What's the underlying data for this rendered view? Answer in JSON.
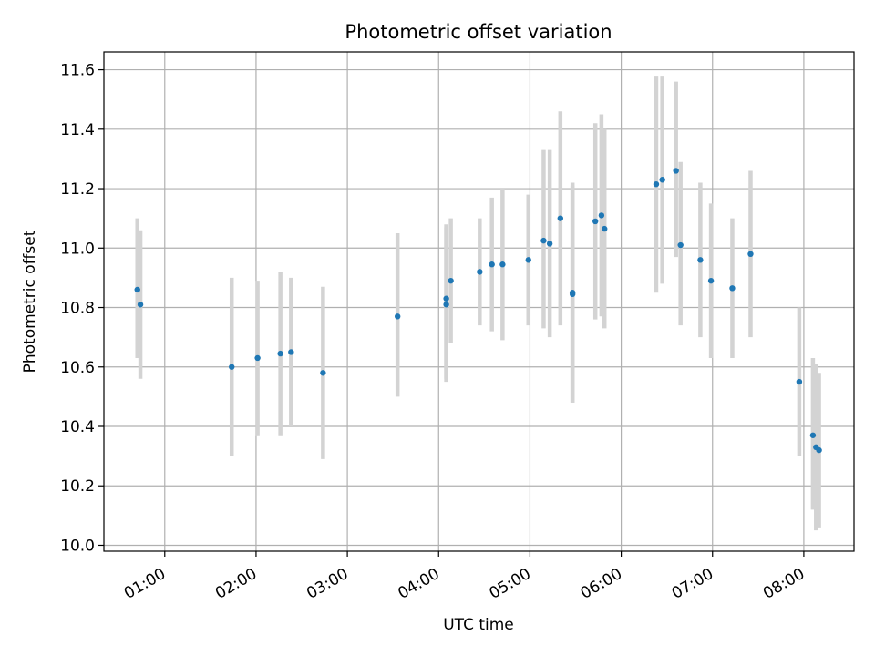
{
  "chart_data": {
    "type": "scatter",
    "title": "Photometric offset variation",
    "xlabel": "UTC time",
    "ylabel": "Photometric offset",
    "x_tick_labels": [
      "01:00",
      "02:00",
      "03:00",
      "04:00",
      "05:00",
      "06:00",
      "07:00",
      "08:00"
    ],
    "y_tick_labels": [
      "10.0",
      "10.2",
      "10.4",
      "10.6",
      "10.8",
      "11.0",
      "11.2",
      "11.4",
      "11.6"
    ],
    "xlim": [
      "00:20",
      "08:33"
    ],
    "ylim": [
      9.98,
      11.66
    ],
    "grid": true,
    "colors": {
      "point": "#1f77b4",
      "errorbar": "#d3d3d3",
      "grid": "#b0b0b0"
    },
    "points": [
      {
        "t": "00:42",
        "y": 10.86,
        "ylo": 10.63,
        "yhi": 11.1
      },
      {
        "t": "00:44",
        "y": 10.81,
        "ylo": 10.56,
        "yhi": 11.06
      },
      {
        "t": "01:44",
        "y": 10.6,
        "ylo": 10.3,
        "yhi": 10.9
      },
      {
        "t": "02:01",
        "y": 10.63,
        "ylo": 10.37,
        "yhi": 10.89
      },
      {
        "t": "02:16",
        "y": 10.645,
        "ylo": 10.37,
        "yhi": 10.92
      },
      {
        "t": "02:23",
        "y": 10.65,
        "ylo": 10.4,
        "yhi": 10.9
      },
      {
        "t": "02:44",
        "y": 10.58,
        "ylo": 10.29,
        "yhi": 10.87
      },
      {
        "t": "03:33",
        "y": 10.77,
        "ylo": 10.5,
        "yhi": 11.05
      },
      {
        "t": "04:05",
        "y": 10.83,
        "ylo": 10.56,
        "yhi": 11.08
      },
      {
        "t": "04:05",
        "y": 10.81,
        "ylo": 10.55,
        "yhi": 11.07
      },
      {
        "t": "04:08",
        "y": 10.89,
        "ylo": 10.68,
        "yhi": 11.1
      },
      {
        "t": "04:27",
        "y": 10.92,
        "ylo": 10.74,
        "yhi": 11.1
      },
      {
        "t": "04:35",
        "y": 10.945,
        "ylo": 10.72,
        "yhi": 11.17
      },
      {
        "t": "04:42",
        "y": 10.945,
        "ylo": 10.69,
        "yhi": 11.2
      },
      {
        "t": "04:59",
        "y": 10.96,
        "ylo": 10.74,
        "yhi": 11.18
      },
      {
        "t": "05:09",
        "y": 11.025,
        "ylo": 10.73,
        "yhi": 11.33
      },
      {
        "t": "05:13",
        "y": 11.015,
        "ylo": 10.7,
        "yhi": 11.33
      },
      {
        "t": "05:20",
        "y": 11.1,
        "ylo": 10.74,
        "yhi": 11.46
      },
      {
        "t": "05:28",
        "y": 10.85,
        "ylo": 10.48,
        "yhi": 11.22
      },
      {
        "t": "05:28",
        "y": 10.845,
        "ylo": 10.48,
        "yhi": 11.21
      },
      {
        "t": "05:43",
        "y": 11.09,
        "ylo": 10.76,
        "yhi": 11.42
      },
      {
        "t": "05:47",
        "y": 11.11,
        "ylo": 10.77,
        "yhi": 11.45
      },
      {
        "t": "05:49",
        "y": 11.065,
        "ylo": 10.73,
        "yhi": 11.4
      },
      {
        "t": "06:23",
        "y": 11.215,
        "ylo": 10.85,
        "yhi": 11.58
      },
      {
        "t": "06:27",
        "y": 11.23,
        "ylo": 10.88,
        "yhi": 11.58
      },
      {
        "t": "06:36",
        "y": 11.26,
        "ylo": 10.97,
        "yhi": 11.56
      },
      {
        "t": "06:39",
        "y": 11.01,
        "ylo": 10.74,
        "yhi": 11.29
      },
      {
        "t": "06:52",
        "y": 10.96,
        "ylo": 10.7,
        "yhi": 11.22
      },
      {
        "t": "06:59",
        "y": 10.89,
        "ylo": 10.63,
        "yhi": 11.15
      },
      {
        "t": "07:13",
        "y": 10.865,
        "ylo": 10.63,
        "yhi": 11.1
      },
      {
        "t": "07:25",
        "y": 10.98,
        "ylo": 10.7,
        "yhi": 11.26
      },
      {
        "t": "07:57",
        "y": 10.55,
        "ylo": 10.3,
        "yhi": 10.8
      },
      {
        "t": "08:06",
        "y": 10.37,
        "ylo": 10.12,
        "yhi": 10.63
      },
      {
        "t": "08:08",
        "y": 10.33,
        "ylo": 10.05,
        "yhi": 10.61
      },
      {
        "t": "08:10",
        "y": 10.32,
        "ylo": 10.06,
        "yhi": 10.58
      }
    ]
  }
}
